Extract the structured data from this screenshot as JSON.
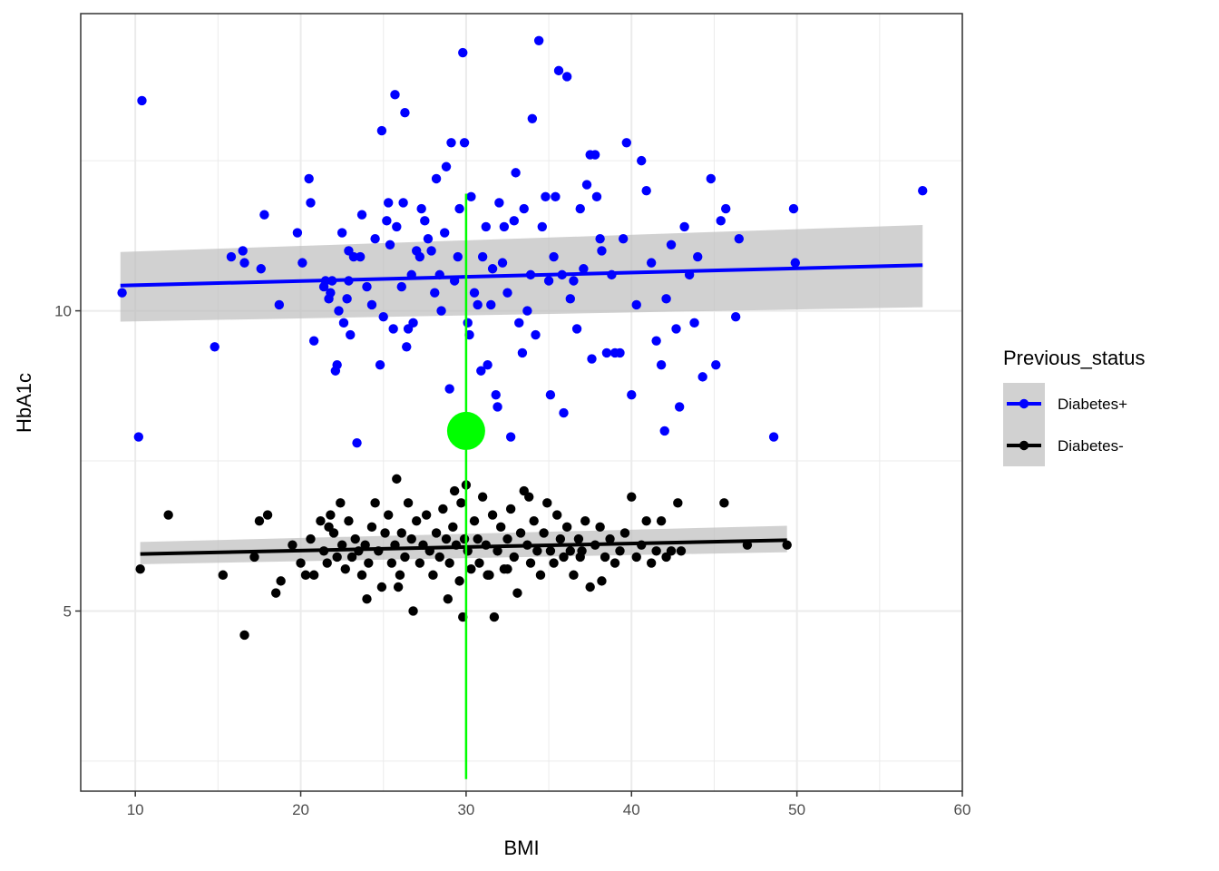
{
  "chart_data": {
    "type": "scatter",
    "xlabel": "BMI",
    "ylabel": "HbA1c",
    "xlim": [
      6.7,
      60
    ],
    "ylim": [
      2.0,
      14.95
    ],
    "x_ticks": [
      10,
      20,
      30,
      40,
      50,
      60
    ],
    "y_ticks": [
      5,
      10
    ],
    "y_minor_grid": [
      2.5,
      7.5,
      12.5
    ],
    "grid": true,
    "theme": "bw",
    "legend": {
      "title": "Previous_status",
      "position": "right",
      "entries": [
        "Diabetes+",
        "Diabetes-"
      ]
    },
    "colors": {
      "Diabetes+": "#0000ff",
      "Diabetes-": "#000000",
      "highlight": "#00ff00",
      "ribbon": "#bdbdbd",
      "grid": "#ebebeb"
    },
    "series": [
      {
        "name": "Diabetes+",
        "color": "#0000ff",
        "fit": {
          "x": [
            9.1,
            57.6
          ],
          "y": [
            10.42,
            10.76
          ]
        },
        "ribbon": {
          "x": [
            9.1,
            57.6
          ],
          "lower": [
            9.82,
            10.06
          ],
          "upper": [
            10.98,
            11.43
          ]
        },
        "points": [
          [
            10.4,
            13.5
          ],
          [
            9.2,
            10.3
          ],
          [
            10.2,
            7.9
          ],
          [
            14.8,
            9.4
          ],
          [
            15.8,
            10.9
          ],
          [
            16.5,
            11.0
          ],
          [
            16.6,
            10.8
          ],
          [
            17.6,
            10.7
          ],
          [
            17.8,
            11.6
          ],
          [
            18.7,
            10.1
          ],
          [
            19.8,
            11.3
          ],
          [
            20.1,
            10.8
          ],
          [
            20.5,
            12.2
          ],
          [
            20.6,
            11.8
          ],
          [
            20.8,
            9.5
          ],
          [
            21.5,
            10.5
          ],
          [
            21.7,
            10.2
          ],
          [
            21.8,
            10.3
          ],
          [
            21.9,
            10.5
          ],
          [
            22.1,
            9.0
          ],
          [
            22.2,
            9.1
          ],
          [
            22.3,
            10.0
          ],
          [
            22.5,
            11.3
          ],
          [
            22.6,
            9.8
          ],
          [
            22.8,
            10.2
          ],
          [
            22.9,
            10.5
          ],
          [
            23.0,
            9.6
          ],
          [
            23.2,
            10.9
          ],
          [
            23.4,
            7.8
          ],
          [
            23.6,
            10.9
          ],
          [
            23.7,
            11.6
          ],
          [
            24.0,
            10.4
          ],
          [
            24.3,
            10.1
          ],
          [
            24.5,
            11.2
          ],
          [
            24.8,
            9.1
          ],
          [
            24.9,
            13.0
          ],
          [
            25.0,
            9.9
          ],
          [
            25.2,
            11.5
          ],
          [
            25.3,
            11.8
          ],
          [
            25.4,
            11.1
          ],
          [
            25.6,
            9.7
          ],
          [
            25.7,
            13.6
          ],
          [
            25.8,
            11.4
          ],
          [
            26.1,
            10.4
          ],
          [
            26.2,
            11.8
          ],
          [
            26.4,
            9.4
          ],
          [
            26.5,
            9.7
          ],
          [
            26.7,
            10.6
          ],
          [
            26.8,
            9.8
          ],
          [
            27.0,
            11.0
          ],
          [
            27.2,
            10.9
          ],
          [
            27.3,
            11.7
          ],
          [
            27.5,
            11.5
          ],
          [
            27.7,
            11.2
          ],
          [
            27.9,
            11.0
          ],
          [
            28.1,
            10.3
          ],
          [
            28.2,
            12.2
          ],
          [
            28.4,
            10.6
          ],
          [
            28.5,
            10.0
          ],
          [
            28.7,
            11.3
          ],
          [
            28.8,
            12.4
          ],
          [
            29.0,
            8.7
          ],
          [
            29.1,
            12.8
          ],
          [
            29.3,
            10.5
          ],
          [
            29.5,
            10.9
          ],
          [
            29.6,
            11.7
          ],
          [
            29.8,
            14.3
          ],
          [
            29.9,
            12.8
          ],
          [
            30.1,
            9.8
          ],
          [
            30.2,
            9.6
          ],
          [
            30.3,
            11.9
          ],
          [
            30.5,
            10.3
          ],
          [
            30.7,
            10.1
          ],
          [
            30.9,
            9.0
          ],
          [
            31.0,
            10.9
          ],
          [
            31.2,
            11.4
          ],
          [
            31.3,
            9.1
          ],
          [
            31.5,
            10.1
          ],
          [
            31.6,
            10.7
          ],
          [
            31.8,
            8.6
          ],
          [
            31.9,
            8.4
          ],
          [
            32.0,
            11.8
          ],
          [
            32.2,
            10.8
          ],
          [
            32.3,
            11.4
          ],
          [
            32.5,
            10.3
          ],
          [
            32.7,
            7.9
          ],
          [
            32.9,
            11.5
          ],
          [
            33.0,
            12.3
          ],
          [
            33.2,
            9.8
          ],
          [
            33.4,
            9.3
          ],
          [
            33.5,
            11.7
          ],
          [
            33.7,
            10.0
          ],
          [
            33.9,
            10.6
          ],
          [
            34.0,
            13.2
          ],
          [
            34.2,
            9.6
          ],
          [
            34.4,
            14.5
          ],
          [
            34.6,
            11.4
          ],
          [
            34.8,
            11.9
          ],
          [
            35.0,
            10.5
          ],
          [
            35.1,
            8.6
          ],
          [
            35.3,
            10.9
          ],
          [
            35.4,
            11.9
          ],
          [
            35.6,
            14.0
          ],
          [
            35.8,
            10.6
          ],
          [
            35.9,
            8.3
          ],
          [
            36.1,
            13.9
          ],
          [
            36.3,
            10.2
          ],
          [
            36.5,
            10.5
          ],
          [
            36.7,
            9.7
          ],
          [
            36.9,
            11.7
          ],
          [
            37.1,
            10.7
          ],
          [
            37.3,
            12.1
          ],
          [
            37.5,
            12.6
          ],
          [
            37.6,
            9.2
          ],
          [
            37.8,
            12.6
          ],
          [
            37.9,
            11.9
          ],
          [
            38.2,
            11.0
          ],
          [
            38.5,
            9.3
          ],
          [
            38.8,
            10.6
          ],
          [
            39.0,
            9.3
          ],
          [
            39.3,
            9.3
          ],
          [
            39.5,
            11.2
          ],
          [
            39.7,
            12.8
          ],
          [
            40.0,
            8.6
          ],
          [
            40.3,
            10.1
          ],
          [
            40.6,
            12.5
          ],
          [
            40.9,
            12.0
          ],
          [
            41.2,
            10.8
          ],
          [
            41.5,
            9.5
          ],
          [
            41.8,
            9.1
          ],
          [
            42.1,
            10.2
          ],
          [
            42.4,
            11.1
          ],
          [
            42.7,
            9.7
          ],
          [
            42.9,
            8.4
          ],
          [
            43.2,
            11.4
          ],
          [
            43.5,
            10.6
          ],
          [
            43.8,
            9.8
          ],
          [
            44.0,
            10.9
          ],
          [
            44.3,
            8.9
          ],
          [
            44.8,
            12.2
          ],
          [
            45.1,
            9.1
          ],
          [
            45.4,
            11.5
          ],
          [
            45.7,
            11.7
          ],
          [
            46.3,
            9.9
          ],
          [
            46.5,
            11.2
          ],
          [
            48.6,
            7.9
          ],
          [
            49.8,
            11.7
          ],
          [
            49.9,
            10.8
          ],
          [
            57.6,
            12.0
          ],
          [
            38.1,
            11.2
          ],
          [
            26.3,
            13.3
          ],
          [
            22.9,
            11.0
          ],
          [
            21.4,
            10.4
          ],
          [
            42.0,
            8.0
          ]
        ]
      },
      {
        "name": "Diabetes-",
        "color": "#000000",
        "fit": {
          "x": [
            10.3,
            49.4
          ],
          "y": [
            5.95,
            6.18
          ]
        },
        "ribbon": {
          "x": [
            10.3,
            49.4
          ],
          "lower": [
            5.78,
            5.98
          ],
          "upper": [
            6.15,
            6.42
          ]
        },
        "points": [
          [
            10.3,
            5.7
          ],
          [
            12.0,
            6.6
          ],
          [
            15.3,
            5.6
          ],
          [
            16.6,
            4.6
          ],
          [
            17.2,
            5.9
          ],
          [
            17.5,
            6.5
          ],
          [
            18.0,
            6.6
          ],
          [
            18.5,
            5.3
          ],
          [
            18.8,
            5.5
          ],
          [
            19.5,
            6.1
          ],
          [
            20.0,
            5.8
          ],
          [
            20.3,
            5.6
          ],
          [
            20.6,
            6.2
          ],
          [
            20.8,
            5.6
          ],
          [
            21.2,
            6.5
          ],
          [
            21.4,
            6.0
          ],
          [
            21.6,
            5.8
          ],
          [
            21.8,
            6.6
          ],
          [
            22.0,
            6.3
          ],
          [
            22.2,
            5.9
          ],
          [
            22.4,
            6.8
          ],
          [
            22.5,
            6.1
          ],
          [
            22.7,
            5.7
          ],
          [
            22.9,
            6.5
          ],
          [
            23.1,
            5.9
          ],
          [
            23.3,
            6.2
          ],
          [
            23.5,
            6.0
          ],
          [
            23.7,
            5.6
          ],
          [
            23.9,
            6.1
          ],
          [
            24.1,
            5.8
          ],
          [
            24.3,
            6.4
          ],
          [
            24.5,
            6.8
          ],
          [
            24.7,
            6.0
          ],
          [
            24.9,
            5.4
          ],
          [
            25.1,
            6.3
          ],
          [
            25.3,
            6.6
          ],
          [
            25.5,
            5.8
          ],
          [
            25.7,
            6.1
          ],
          [
            25.8,
            7.2
          ],
          [
            25.9,
            5.4
          ],
          [
            26.1,
            6.3
          ],
          [
            26.3,
            5.9
          ],
          [
            26.5,
            6.8
          ],
          [
            26.7,
            6.2
          ],
          [
            26.8,
            5.0
          ],
          [
            27.0,
            6.5
          ],
          [
            27.2,
            5.8
          ],
          [
            27.4,
            6.1
          ],
          [
            27.6,
            6.6
          ],
          [
            27.8,
            6.0
          ],
          [
            28.0,
            5.6
          ],
          [
            28.2,
            6.3
          ],
          [
            28.4,
            5.9
          ],
          [
            28.6,
            6.7
          ],
          [
            28.8,
            6.2
          ],
          [
            29.0,
            5.8
          ],
          [
            29.2,
            6.4
          ],
          [
            29.3,
            7.0
          ],
          [
            29.4,
            6.1
          ],
          [
            29.6,
            5.5
          ],
          [
            29.7,
            6.8
          ],
          [
            29.8,
            4.9
          ],
          [
            29.9,
            6.2
          ],
          [
            30.0,
            7.1
          ],
          [
            30.1,
            6.0
          ],
          [
            30.3,
            5.7
          ],
          [
            30.5,
            6.5
          ],
          [
            30.7,
            6.2
          ],
          [
            30.8,
            5.8
          ],
          [
            31.0,
            6.9
          ],
          [
            31.2,
            6.1
          ],
          [
            31.4,
            5.6
          ],
          [
            31.6,
            6.6
          ],
          [
            31.7,
            4.9
          ],
          [
            31.9,
            6.0
          ],
          [
            32.1,
            6.4
          ],
          [
            32.3,
            5.7
          ],
          [
            32.5,
            6.2
          ],
          [
            32.7,
            6.7
          ],
          [
            32.9,
            5.9
          ],
          [
            33.1,
            5.3
          ],
          [
            33.3,
            6.3
          ],
          [
            33.5,
            7.0
          ],
          [
            33.7,
            6.1
          ],
          [
            33.9,
            5.8
          ],
          [
            34.1,
            6.5
          ],
          [
            34.3,
            6.0
          ],
          [
            34.5,
            5.6
          ],
          [
            34.7,
            6.3
          ],
          [
            34.9,
            6.8
          ],
          [
            35.1,
            6.0
          ],
          [
            35.3,
            5.8
          ],
          [
            35.5,
            6.6
          ],
          [
            35.7,
            6.2
          ],
          [
            35.9,
            5.9
          ],
          [
            36.1,
            6.4
          ],
          [
            36.3,
            6.0
          ],
          [
            36.5,
            5.6
          ],
          [
            36.8,
            6.2
          ],
          [
            37.0,
            6.0
          ],
          [
            37.2,
            6.5
          ],
          [
            37.5,
            5.4
          ],
          [
            37.8,
            6.1
          ],
          [
            38.1,
            6.4
          ],
          [
            38.4,
            5.9
          ],
          [
            38.7,
            6.2
          ],
          [
            39.0,
            5.8
          ],
          [
            39.3,
            6.0
          ],
          [
            39.6,
            6.3
          ],
          [
            40.0,
            6.9
          ],
          [
            40.3,
            5.9
          ],
          [
            40.6,
            6.1
          ],
          [
            40.9,
            6.5
          ],
          [
            41.2,
            5.8
          ],
          [
            41.5,
            6.0
          ],
          [
            41.8,
            6.5
          ],
          [
            42.1,
            5.9
          ],
          [
            42.4,
            6.0
          ],
          [
            42.8,
            6.8
          ],
          [
            43.0,
            6.0
          ],
          [
            45.6,
            6.8
          ],
          [
            47.0,
            6.1
          ],
          [
            49.4,
            6.1
          ],
          [
            33.8,
            6.9
          ],
          [
            21.7,
            6.4
          ],
          [
            24.0,
            5.2
          ],
          [
            26.0,
            5.6
          ],
          [
            28.9,
            5.2
          ],
          [
            31.3,
            5.6
          ],
          [
            32.5,
            5.7
          ],
          [
            36.9,
            5.9
          ],
          [
            38.2,
            5.5
          ]
        ]
      }
    ],
    "highlight": {
      "point": {
        "x": 30,
        "y": 8.0
      },
      "vline": {
        "x": 30,
        "y": [
          2.2,
          11.95
        ]
      }
    }
  }
}
